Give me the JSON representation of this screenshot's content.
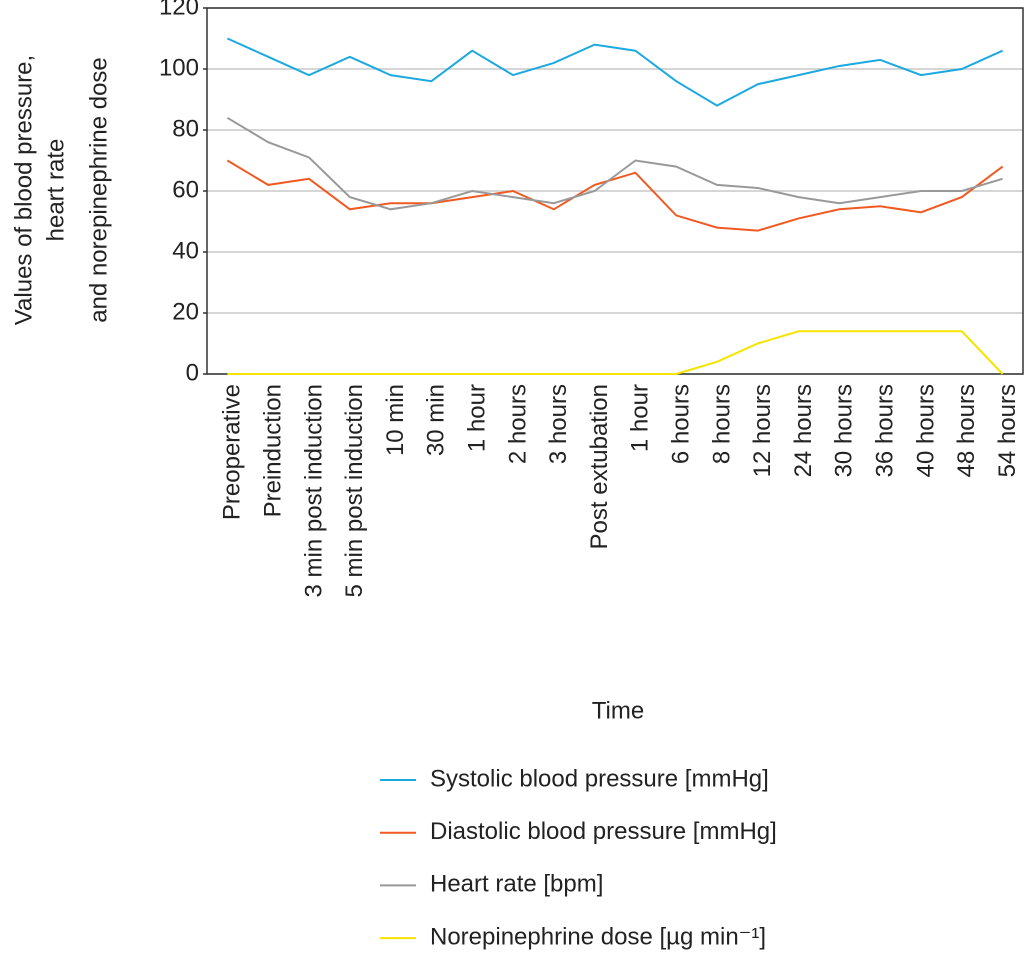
{
  "chart_data": {
    "type": "line",
    "y_label": [
      "Values of blood pressure,",
      "heart rate",
      "and norepinephrine dose"
    ],
    "x_label": "Time",
    "categories": [
      "Preoperative",
      "Preinduction",
      "3 min post induction",
      "5 min post induction",
      "10 min",
      "30 min",
      "1 hour",
      "2 hours",
      "3 hours",
      "Post extubation",
      "1 hour",
      "6 hours",
      "8 hours",
      "12 hours",
      "24 hours",
      "30 hours",
      "36 hours",
      "40 hours",
      "48 hours",
      "54 hours"
    ],
    "series": [
      {
        "name": "Systolic blood pressure [mmHg]",
        "color": "#1ba9e0",
        "values": [
          110,
          104,
          98,
          104,
          98,
          96,
          106,
          98,
          102,
          108,
          106,
          96,
          88,
          95,
          98,
          101,
          103,
          98,
          100,
          106
        ]
      },
      {
        "name": "Diastolic blood pressure [mmHg]",
        "color": "#f05a22",
        "values": [
          70,
          62,
          64,
          54,
          56,
          56,
          58,
          60,
          54,
          62,
          66,
          52,
          48,
          47,
          51,
          54,
          55,
          53,
          58,
          68
        ]
      },
      {
        "name": "Heart rate [bpm]",
        "color": "#999999",
        "values": [
          84,
          76,
          71,
          58,
          54,
          56,
          60,
          58,
          56,
          60,
          70,
          68,
          62,
          61,
          58,
          56,
          58,
          60,
          60,
          64
        ]
      },
      {
        "name": "Norepinephrine dose [µg min⁻¹]",
        "color": "#f5e400",
        "values": [
          0,
          0,
          0,
          0,
          0,
          0,
          0,
          0,
          0,
          0,
          0,
          0,
          4,
          10,
          14,
          14,
          14,
          14,
          14,
          0
        ]
      }
    ],
    "ylim": [
      0,
      120
    ],
    "yticks": [
      0,
      20,
      40,
      60,
      80,
      100,
      120
    ],
    "grid": true
  }
}
